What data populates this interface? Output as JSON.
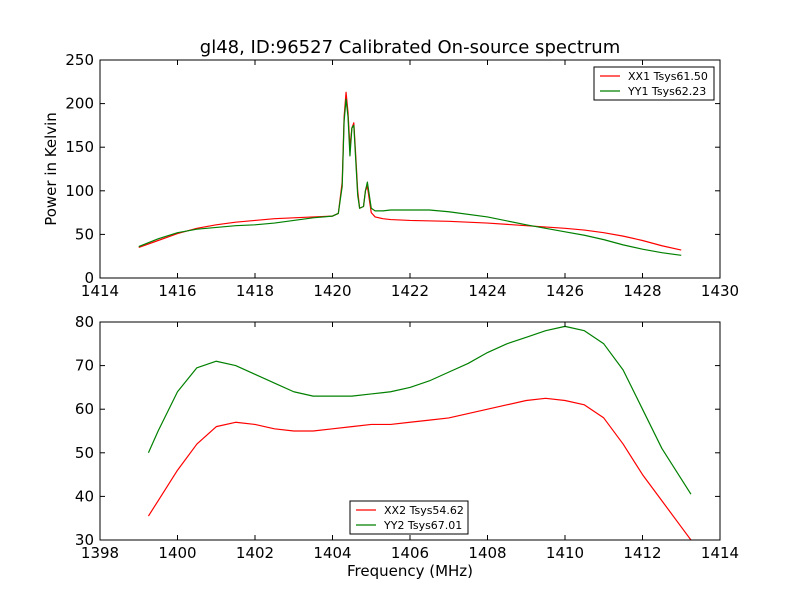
{
  "title": "gl48, ID:96527 Calibrated On-source spectrum",
  "chart_data": [
    {
      "type": "line",
      "ylabel": "Power in Kelvin",
      "xlabel": "",
      "xlim": [
        1414,
        1430
      ],
      "ylim": [
        0,
        250
      ],
      "xticks": [
        1414,
        1416,
        1418,
        1420,
        1422,
        1424,
        1426,
        1428,
        1430
      ],
      "yticks": [
        0,
        50,
        100,
        150,
        200,
        250
      ],
      "grid": false,
      "legend_position": "top-right",
      "series": [
        {
          "name": "XX1 Tsys61.50",
          "color": "#ff0000",
          "x": [
            1415.0,
            1415.5,
            1416.0,
            1416.5,
            1417.0,
            1417.5,
            1418.0,
            1418.5,
            1419.0,
            1419.5,
            1420.0,
            1420.15,
            1420.25,
            1420.3,
            1420.35,
            1420.4,
            1420.45,
            1420.5,
            1420.55,
            1420.6,
            1420.65,
            1420.7,
            1420.8,
            1420.85,
            1420.9,
            1420.95,
            1421.0,
            1421.1,
            1421.3,
            1421.5,
            1422.0,
            1423.0,
            1424.0,
            1425.0,
            1426.0,
            1426.5,
            1427.0,
            1427.5,
            1428.0,
            1428.5,
            1429.0
          ],
          "y": [
            35,
            43,
            51,
            57,
            61,
            64,
            66,
            68,
            69,
            70,
            71,
            74,
            110,
            185,
            213,
            190,
            150,
            172,
            178,
            140,
            100,
            80,
            82,
            100,
            105,
            90,
            75,
            70,
            68,
            67,
            66,
            65,
            63,
            60,
            57,
            55,
            52,
            48,
            43,
            37,
            32
          ]
        },
        {
          "name": "YY1 Tsys62.23",
          "color": "#008000",
          "x": [
            1415.0,
            1415.5,
            1416.0,
            1416.5,
            1417.0,
            1417.5,
            1418.0,
            1418.5,
            1419.0,
            1419.5,
            1420.0,
            1420.15,
            1420.25,
            1420.3,
            1420.35,
            1420.4,
            1420.45,
            1420.5,
            1420.55,
            1420.6,
            1420.65,
            1420.7,
            1420.8,
            1420.85,
            1420.9,
            1420.95,
            1421.0,
            1421.1,
            1421.3,
            1421.5,
            1422.0,
            1422.5,
            1423.0,
            1424.0,
            1425.0,
            1426.0,
            1426.5,
            1427.0,
            1427.5,
            1428.0,
            1428.5,
            1429.0
          ],
          "y": [
            36,
            45,
            52,
            56,
            58,
            60,
            61,
            63,
            66,
            69,
            71,
            74,
            105,
            180,
            205,
            185,
            140,
            172,
            175,
            135,
            95,
            80,
            82,
            100,
            110,
            95,
            80,
            77,
            77,
            78,
            78,
            78,
            76,
            70,
            61,
            53,
            49,
            44,
            38,
            33,
            29,
            26
          ]
        }
      ]
    },
    {
      "type": "line",
      "ylabel": "",
      "xlabel": "Frequency (MHz)",
      "xlim": [
        1398,
        1414
      ],
      "ylim": [
        30,
        80
      ],
      "xticks": [
        1398,
        1400,
        1402,
        1404,
        1406,
        1408,
        1410,
        1412,
        1414
      ],
      "yticks": [
        30,
        40,
        50,
        60,
        70,
        80
      ],
      "grid": false,
      "legend_position": "bottom-center",
      "series": [
        {
          "name": "XX2 Tsys54.62",
          "color": "#ff0000",
          "x": [
            1399.25,
            1399.5,
            1400.0,
            1400.5,
            1401.0,
            1401.5,
            1402.0,
            1402.5,
            1403.0,
            1403.5,
            1404.0,
            1404.5,
            1405.0,
            1405.5,
            1406.0,
            1406.5,
            1407.0,
            1407.5,
            1408.0,
            1408.5,
            1409.0,
            1409.5,
            1410.0,
            1410.5,
            1411.0,
            1411.5,
            1412.0,
            1412.5,
            1413.0,
            1413.25
          ],
          "y": [
            35.5,
            39,
            46,
            52,
            56,
            57,
            56.5,
            55.5,
            55,
            55,
            55.5,
            56,
            56.5,
            56.5,
            57,
            57.5,
            58,
            59,
            60,
            61,
            62,
            62.5,
            62,
            61,
            58,
            52,
            45,
            39,
            33,
            30
          ]
        },
        {
          "name": "YY2 Tsys67.01",
          "color": "#008000",
          "x": [
            1399.25,
            1399.5,
            1400.0,
            1400.5,
            1401.0,
            1401.5,
            1402.0,
            1402.5,
            1403.0,
            1403.5,
            1404.0,
            1404.5,
            1405.0,
            1405.5,
            1406.0,
            1406.5,
            1407.0,
            1407.5,
            1408.0,
            1408.5,
            1409.0,
            1409.5,
            1410.0,
            1410.5,
            1411.0,
            1411.5,
            1412.0,
            1412.5,
            1413.0,
            1413.25
          ],
          "y": [
            50,
            55,
            64,
            69.5,
            71,
            70,
            68,
            66,
            64,
            63,
            63,
            63,
            63.5,
            64,
            65,
            66.5,
            68.5,
            70.5,
            73,
            75,
            76.5,
            78,
            79,
            78,
            75,
            69,
            60,
            51,
            44,
            40.5
          ]
        }
      ]
    }
  ]
}
